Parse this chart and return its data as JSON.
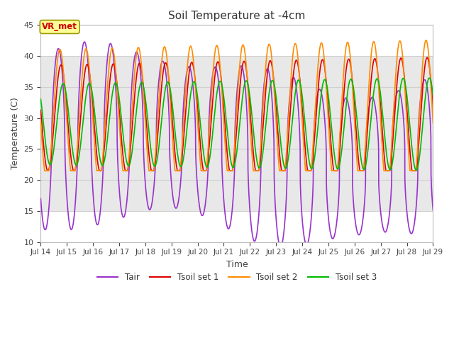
{
  "title": "Soil Temperature at -4cm",
  "xlabel": "Time",
  "ylabel": "Temperature (C)",
  "ylim": [
    10,
    45
  ],
  "xlim_start": 14,
  "xlim_end": 29,
  "plot_bg_color": "#ffffff",
  "band_color": "#e8e8e8",
  "band_ymin": 15,
  "band_ymax": 40,
  "grid_color": "#d0d0d0",
  "annotation_label": "VR_met",
  "annotation_color": "#cc0000",
  "annotation_bg": "#ffff99",
  "annotation_border": "#999900",
  "colors": {
    "Tair": "#9932cc",
    "Tsoil1": "#dd0000",
    "Tsoil2": "#ff8c00",
    "Tsoil3": "#00bb00"
  },
  "xtick_days": [
    14,
    15,
    16,
    17,
    18,
    19,
    20,
    21,
    22,
    23,
    24,
    25,
    26,
    27,
    28,
    29
  ],
  "ytick_vals": [
    10,
    15,
    20,
    25,
    30,
    35,
    40,
    45
  ],
  "legend_labels": [
    "Tair",
    "Tsoil set 1",
    "Tsoil set 2",
    "Tsoil set 3"
  ],
  "legend_colors": [
    "#9932cc",
    "#dd0000",
    "#ff8c00",
    "#00bb00"
  ]
}
